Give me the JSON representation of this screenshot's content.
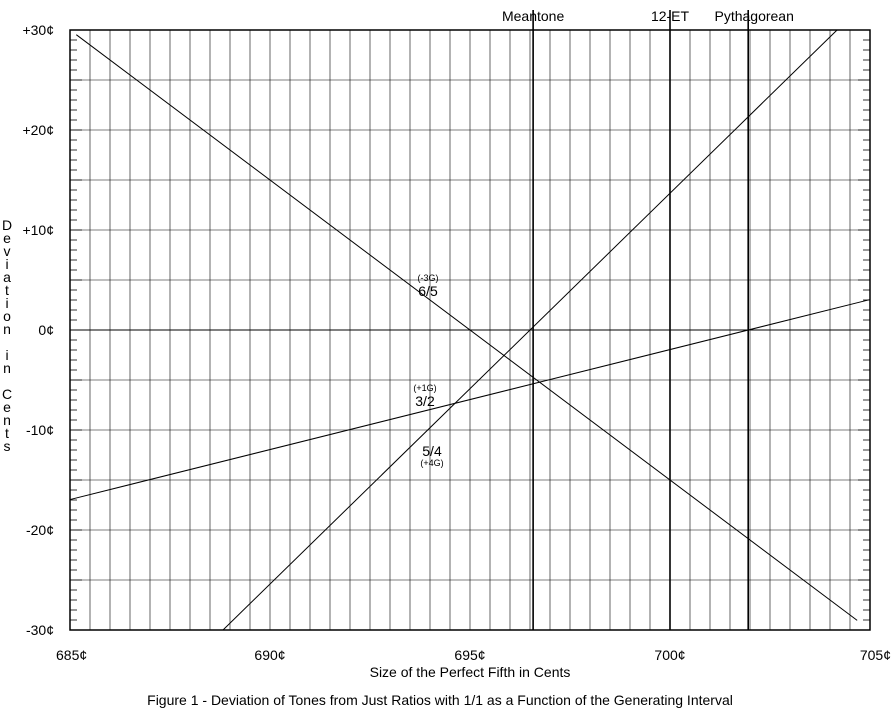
{
  "chart_data": {
    "type": "line",
    "title": "",
    "xlabel": "Size of the Perfect Fifth in Cents",
    "ylabel": "Deviation in Cents",
    "caption": "Figure 1 - Deviation of Tones from Just Ratios with 1/1 as a Function of the Generating Interval",
    "xlim": [
      685,
      705
    ],
    "ylim": [
      -30,
      30
    ],
    "grid": true,
    "x_ticks": [
      {
        "value": 685,
        "label": "685¢"
      },
      {
        "value": 690,
        "label": "690¢"
      },
      {
        "value": 695,
        "label": "695¢"
      },
      {
        "value": 700,
        "label": "700¢"
      },
      {
        "value": 705,
        "label": "705¢"
      }
    ],
    "y_ticks": [
      {
        "value": 30,
        "label": "+30¢"
      },
      {
        "value": 20,
        "label": "+20¢"
      },
      {
        "value": 10,
        "label": "+10¢"
      },
      {
        "value": 0,
        "label": "0¢"
      },
      {
        "value": -10,
        "label": "-10¢"
      },
      {
        "value": -20,
        "label": "-20¢"
      },
      {
        "value": -30,
        "label": "-30¢"
      }
    ],
    "series": [
      {
        "name": "3/2",
        "generator_steps": "(+1G)",
        "x": [
          685,
          705
        ],
        "y": [
          -16.955,
          3.045
        ]
      },
      {
        "name": "5/4",
        "generator_steps": "(+4G)",
        "x": [
          688.825,
          704.177
        ],
        "y": [
          -30,
          30
        ]
      },
      {
        "name": "6/5",
        "generator_steps": "(-3G)",
        "x": [
          685.157,
          704.679
        ],
        "y": [
          29.529,
          -29.037
        ]
      }
    ],
    "reference_lines": [
      {
        "label": "Meantone",
        "x": 696.578
      },
      {
        "label": "12-ET",
        "x": 700
      },
      {
        "label": "Pythagorean",
        "x": 701.955
      }
    ]
  }
}
